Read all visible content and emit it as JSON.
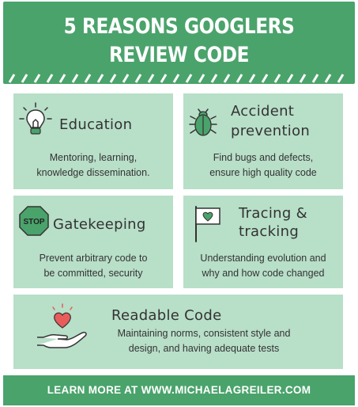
{
  "header": {
    "title_line1": "5 REASONS GOOGLERS",
    "title_line2": "REVIEW CODE"
  },
  "reasons": [
    {
      "title": "Education",
      "description_line1": "Mentoring, learning,",
      "description_line2": "knowledge dissemination.",
      "icon": "lightbulb-icon"
    },
    {
      "title_line1": "Accident",
      "title_line2": "prevention",
      "description_line1": "Find bugs and defects,",
      "description_line2": "ensure high quality code",
      "icon": "bug-icon"
    },
    {
      "title": "Gatekeeping",
      "description_line1": "Prevent arbitrary code to",
      "description_line2": "be committed, security",
      "icon": "stop-sign-icon",
      "icon_label": "STOP"
    },
    {
      "title_line1": "Tracing &",
      "title_line2": "tracking",
      "description_line1": "Understanding evolution and",
      "description_line2": "why and how code changed",
      "icon": "flag-icon"
    },
    {
      "title": "Readable Code",
      "description_line1": "Maintaining norms, consistent style and",
      "description_line2": "design, and having adequate tests",
      "icon": "hand-heart-icon"
    }
  ],
  "footer": {
    "text": "LEARN MORE AT WWW.MICHAELAGREILER.COM"
  },
  "colors": {
    "brand_green": "#4aa36b",
    "card_green": "#b8dfc8",
    "heart_red": "#e85c5c"
  }
}
